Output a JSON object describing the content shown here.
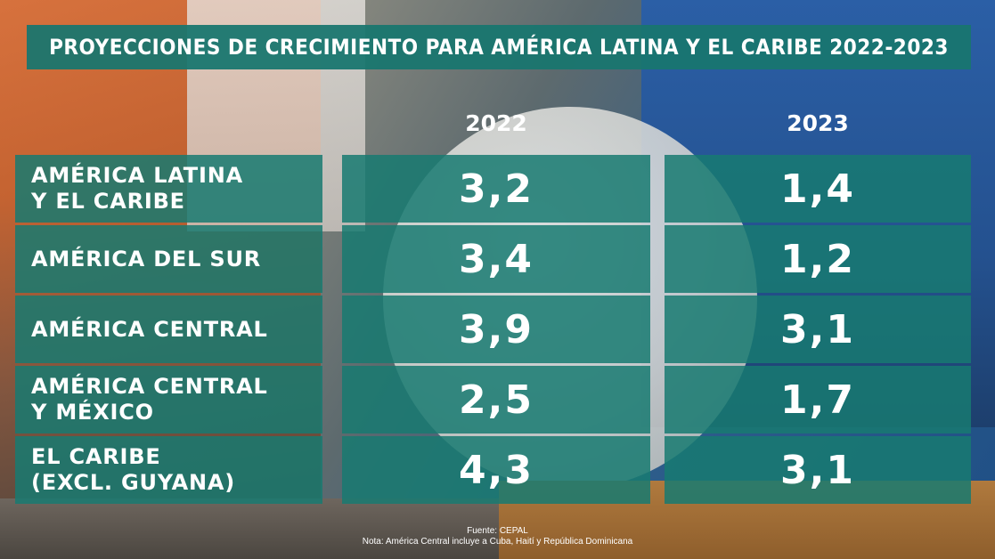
{
  "title": "PROYECCIONES DE CRECIMIENTO PARA AMÉRICA LATINA Y EL CARIBE 2022-2023",
  "source": "Fuente: CEPAL",
  "note": "Nota: América Central incluye a Cuba, Haití y República Dominicana",
  "colors": {
    "panel": "#187a71",
    "text": "#ffffff"
  },
  "chart_data": {
    "type": "table",
    "title": "PROYECCIONES DE CRECIMIENTO PARA AMÉRICA LATINA Y EL CARIBE 2022-2023",
    "columns": [
      "2022",
      "2023"
    ],
    "rows": [
      {
        "label": "AMÉRICA LATINA Y EL CARIBE",
        "lines": [
          "AMÉRICA LATINA",
          "Y EL CARIBE"
        ],
        "v2022": "3,2",
        "v2023": "1,4"
      },
      {
        "label": "AMÉRICA DEL SUR",
        "lines": [
          "AMÉRICA DEL SUR"
        ],
        "v2022": "3,4",
        "v2023": "1,2"
      },
      {
        "label": "AMÉRICA CENTRAL",
        "lines": [
          "AMÉRICA CENTRAL"
        ],
        "v2022": "3,9",
        "v2023": "3,1"
      },
      {
        "label": "AMÉRICA CENTRAL Y MÉXICO",
        "lines": [
          "AMÉRICA CENTRAL",
          "Y MÉXICO"
        ],
        "v2022": "2,5",
        "v2023": "1,7"
      },
      {
        "label": "EL CARIBE (EXCL. GUYANA)",
        "lines": [
          "EL CARIBE",
          "(EXCL. GUYANA)"
        ],
        "v2022": "4,3",
        "v2023": "3,1"
      }
    ]
  }
}
